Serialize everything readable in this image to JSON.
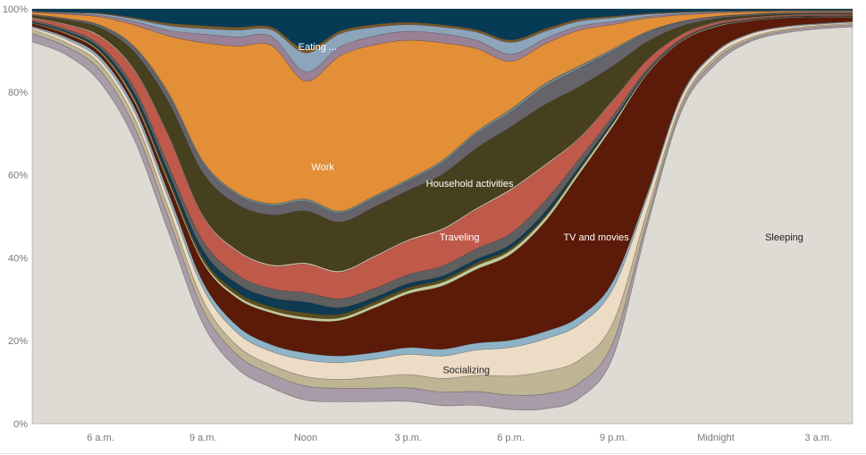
{
  "chart_data": {
    "type": "area",
    "stacked": true,
    "normalized": true,
    "title": "",
    "xlabel": "",
    "ylabel": "",
    "ylim": [
      0,
      100
    ],
    "grid": true,
    "legend": "none",
    "y_ticks": [
      {
        "value": 0,
        "label": "0%"
      },
      {
        "value": 20,
        "label": "20%"
      },
      {
        "value": 40,
        "label": "40%"
      },
      {
        "value": 60,
        "label": "60%"
      },
      {
        "value": 80,
        "label": "80%"
      },
      {
        "value": 100,
        "label": "100%"
      }
    ],
    "x_ticks": [
      {
        "value": 6,
        "label": "6 a.m."
      },
      {
        "value": 9,
        "label": "9 a.m."
      },
      {
        "value": 12,
        "label": "Noon"
      },
      {
        "value": 15,
        "label": "3 p.m."
      },
      {
        "value": 18,
        "label": "6 p.m."
      },
      {
        "value": 21,
        "label": "9 p.m."
      },
      {
        "value": 24,
        "label": "Midnight"
      },
      {
        "value": 27,
        "label": "3 a.m."
      }
    ],
    "x": [
      4,
      5,
      6,
      7,
      8,
      9,
      10,
      11,
      12,
      13,
      14,
      15,
      16,
      17,
      18,
      19,
      20,
      21,
      22,
      23,
      24,
      25,
      26,
      27,
      28
    ],
    "series": [
      {
        "name": "Sleeping",
        "color": "#dedbd4",
        "label_x": 26.0,
        "label_y": 45,
        "values": [
          93,
          90,
          84,
          65,
          40,
          21,
          12,
          8,
          5,
          5,
          5,
          5,
          4,
          4,
          3,
          3,
          5,
          14,
          45,
          77,
          88,
          92,
          94,
          95,
          95
        ]
      },
      {
        "name": "",
        "color": "#a89ca8",
        "values": [
          2,
          2,
          3,
          3,
          3,
          3,
          3,
          3,
          3,
          3,
          3,
          3,
          3,
          3,
          3,
          3,
          3,
          3,
          1.5,
          1,
          1,
          0.5,
          0.5,
          0.5,
          0.5
        ]
      },
      {
        "name": "",
        "color": "#bfb595",
        "values": [
          1,
          1,
          1.5,
          2,
          2,
          2,
          2,
          2,
          2,
          2,
          2.5,
          3,
          3,
          3.5,
          4,
          4.5,
          4.5,
          4,
          2,
          1,
          0.8,
          0.5,
          0.4,
          0.3,
          0.3
        ]
      },
      {
        "name": "Socializing",
        "color": "#ecdcc6",
        "label_x": 16.7,
        "label_y": 13,
        "values": [
          0.5,
          0.8,
          1,
          1.5,
          2,
          2.5,
          2.8,
          3,
          3.5,
          3.8,
          4,
          4.5,
          5,
          5.5,
          6,
          6.5,
          7,
          7,
          3,
          1.5,
          1,
          0.8,
          0.5,
          0.3,
          0.3
        ]
      },
      {
        "name": "",
        "color": "#8fb3c6",
        "values": [
          0.3,
          0.5,
          0.8,
          1,
          1.2,
          1.3,
          1.5,
          1.5,
          1.5,
          1.5,
          1.5,
          1.5,
          1.5,
          1.5,
          1.5,
          1.5,
          1.5,
          1.5,
          0.8,
          0.5,
          0.3,
          0.2,
          0.2,
          0.2,
          0.2
        ]
      },
      {
        "name": "TV and movies",
        "color": "#5b1b08",
        "label_x": 20.5,
        "label_y": 45,
        "values": [
          0.7,
          0.8,
          1,
          1.2,
          2,
          4,
          6,
          7,
          7,
          8,
          10,
          12,
          14,
          16,
          18,
          22,
          28,
          32,
          27,
          13,
          6,
          3,
          2,
          1.5,
          1
        ]
      },
      {
        "name": "",
        "color": "#c3ca9a",
        "values": [
          0.1,
          0.2,
          0.3,
          0.5,
          0.5,
          0.5,
          0.6,
          0.6,
          0.6,
          0.6,
          0.7,
          0.7,
          0.8,
          0.8,
          0.8,
          0.8,
          0.7,
          0.6,
          0.3,
          0.2,
          0.2,
          0.1,
          0.1,
          0.1,
          0.1
        ]
      },
      {
        "name": "",
        "color": "#5c4f1d",
        "values": [
          0.1,
          0.2,
          0.3,
          0.5,
          0.6,
          0.7,
          0.8,
          0.8,
          0.9,
          0.8,
          0.7,
          0.7,
          0.6,
          0.6,
          0.5,
          0.4,
          0.3,
          0.2,
          0.1,
          0.1,
          0.1,
          0.1,
          0.1,
          0.1,
          0.1
        ]
      },
      {
        "name": "",
        "color": "#0e3a52",
        "values": [
          0.2,
          0.3,
          0.5,
          1,
          1.2,
          1.5,
          1.8,
          2,
          2.3,
          1.5,
          1,
          0.9,
          0.8,
          0.8,
          0.8,
          0.8,
          0.5,
          0.4,
          0.2,
          0.1,
          0.1,
          0.1,
          0.1,
          0.1,
          0.1
        ]
      },
      {
        "name": "",
        "color": "#5f5f5f",
        "values": [
          0.3,
          0.5,
          0.8,
          1.2,
          1.5,
          2,
          2,
          2,
          2,
          2,
          2,
          2,
          2.2,
          2.3,
          2.3,
          2.2,
          1.5,
          1,
          0.6,
          0.3,
          0.2,
          0.1,
          0.1,
          0.1,
          0.1
        ]
      },
      {
        "name": "Traveling",
        "color": "#bf5a4b",
        "label_x": 16.5,
        "label_y": 45,
        "values": [
          0.5,
          1,
          2,
          4,
          6,
          5,
          5,
          5,
          6,
          6,
          7,
          7.5,
          8,
          8.5,
          9,
          7,
          4,
          3,
          2,
          1,
          0.5,
          0.3,
          0.2,
          0.2,
          0.2
        ]
      },
      {
        "name": "",
        "color": "#e2c7a8",
        "values": [
          0.2,
          0.2,
          0.3,
          0.3,
          0.3,
          0.3,
          0.3,
          0.3,
          0.3,
          0.3,
          0.3,
          0.3,
          0.3,
          0.3,
          0.3,
          0.3,
          0.2,
          0.2,
          0.1,
          0.1,
          0.1,
          0.1,
          0.1,
          0.1,
          0.1
        ]
      },
      {
        "name": "Household activities",
        "color": "#47401f",
        "label_x": 16.8,
        "label_y": 58,
        "values": [
          0.5,
          1,
          2,
          4,
          7,
          9,
          10,
          11,
          11,
          11,
          11,
          11,
          12,
          13,
          13,
          12,
          10,
          7,
          4,
          2,
          0.8,
          0.5,
          0.3,
          0.2,
          0.2
        ]
      },
      {
        "name": "",
        "color": "#66636a",
        "values": [
          0.2,
          0.3,
          0.5,
          1,
          1.5,
          2,
          2,
          2,
          2,
          2,
          2,
          2,
          2.5,
          3,
          3,
          3.5,
          3.5,
          3,
          2,
          1,
          0.5,
          0.3,
          0.2,
          0.2,
          0.2
        ]
      },
      {
        "name": "",
        "color": "#6e8486",
        "values": [
          0.1,
          0.1,
          0.2,
          0.3,
          0.5,
          0.5,
          0.5,
          0.5,
          0.5,
          0.5,
          0.5,
          0.5,
          0.6,
          0.6,
          0.7,
          0.7,
          0.6,
          0.5,
          0.3,
          0.2,
          0.1,
          0.1,
          0.1,
          0.1,
          0.1
        ]
      },
      {
        "name": "Work",
        "color": "#e28f38",
        "label_x": 12.5,
        "label_y": 62,
        "values": [
          0.5,
          1,
          2,
          5,
          12,
          25,
          32,
          35,
          25,
          35,
          34,
          31,
          26,
          18,
          10,
          8,
          7,
          5,
          3,
          1.5,
          0.8,
          0.5,
          0.3,
          0.2,
          0.2
        ]
      },
      {
        "name": "",
        "color": "#998296",
        "values": [
          0.1,
          0.2,
          0.4,
          0.8,
          1.2,
          1.8,
          2,
          2,
          2,
          2,
          2,
          2,
          2,
          1.8,
          1.5,
          1,
          0.8,
          0.6,
          0.4,
          0.3,
          0.2,
          0.1,
          0.1,
          0.1,
          0.1
        ]
      },
      {
        "name": "",
        "color": "#8ca5bb",
        "values": [
          0.1,
          0.2,
          0.4,
          0.6,
          1,
          1.2,
          1.5,
          1.5,
          4,
          3,
          2,
          1.5,
          1.5,
          1.8,
          2.5,
          1.5,
          1,
          0.8,
          0.5,
          0.3,
          0.2,
          0.1,
          0.1,
          0.1,
          0.1
        ]
      },
      {
        "name": "",
        "color": "#7b5a2a",
        "values": [
          0.1,
          0.1,
          0.2,
          0.3,
          0.5,
          0.6,
          0.6,
          0.6,
          0.8,
          0.6,
          0.6,
          0.5,
          0.5,
          0.5,
          0.5,
          0.5,
          0.4,
          0.3,
          0.2,
          0.2,
          0.1,
          0.1,
          0.1,
          0.1,
          0.1
        ]
      },
      {
        "name": "Eating ...",
        "color": "#063b55",
        "label_x": 12.35,
        "label_y": 91,
        "values": [
          0.5,
          0.8,
          1,
          2,
          3,
          3.5,
          4,
          4,
          8.5,
          5,
          3.5,
          3,
          3.5,
          4.5,
          6.5,
          4,
          2,
          1.5,
          1,
          0.7,
          0.5,
          0.4,
          0.3,
          0.3,
          0.3
        ]
      }
    ]
  }
}
